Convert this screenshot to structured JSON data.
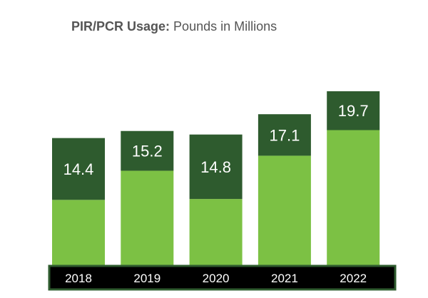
{
  "chart_data": {
    "type": "bar",
    "title_bold": "PIR/PCR Usage:",
    "title_rest": " Pounds in Millions",
    "categories": [
      "2018",
      "2019",
      "2020",
      "2021",
      "2022"
    ],
    "series": [
      {
        "values": [
          7.4,
          10.7,
          7.5,
          12.4,
          15.3
        ]
      },
      {
        "values": [
          7.0,
          4.5,
          7.3,
          4.7,
          4.4
        ]
      }
    ],
    "totals": [
      "14.4",
      "15.2",
      "14.8",
      "17.1",
      "19.7"
    ],
    "stacked": true,
    "colors": {
      "light": "#7cc144",
      "dark": "#2e5b2e",
      "axis_band": "#000000",
      "axis_border": "#2e5b2e"
    },
    "ylim": [
      0,
      22
    ]
  }
}
